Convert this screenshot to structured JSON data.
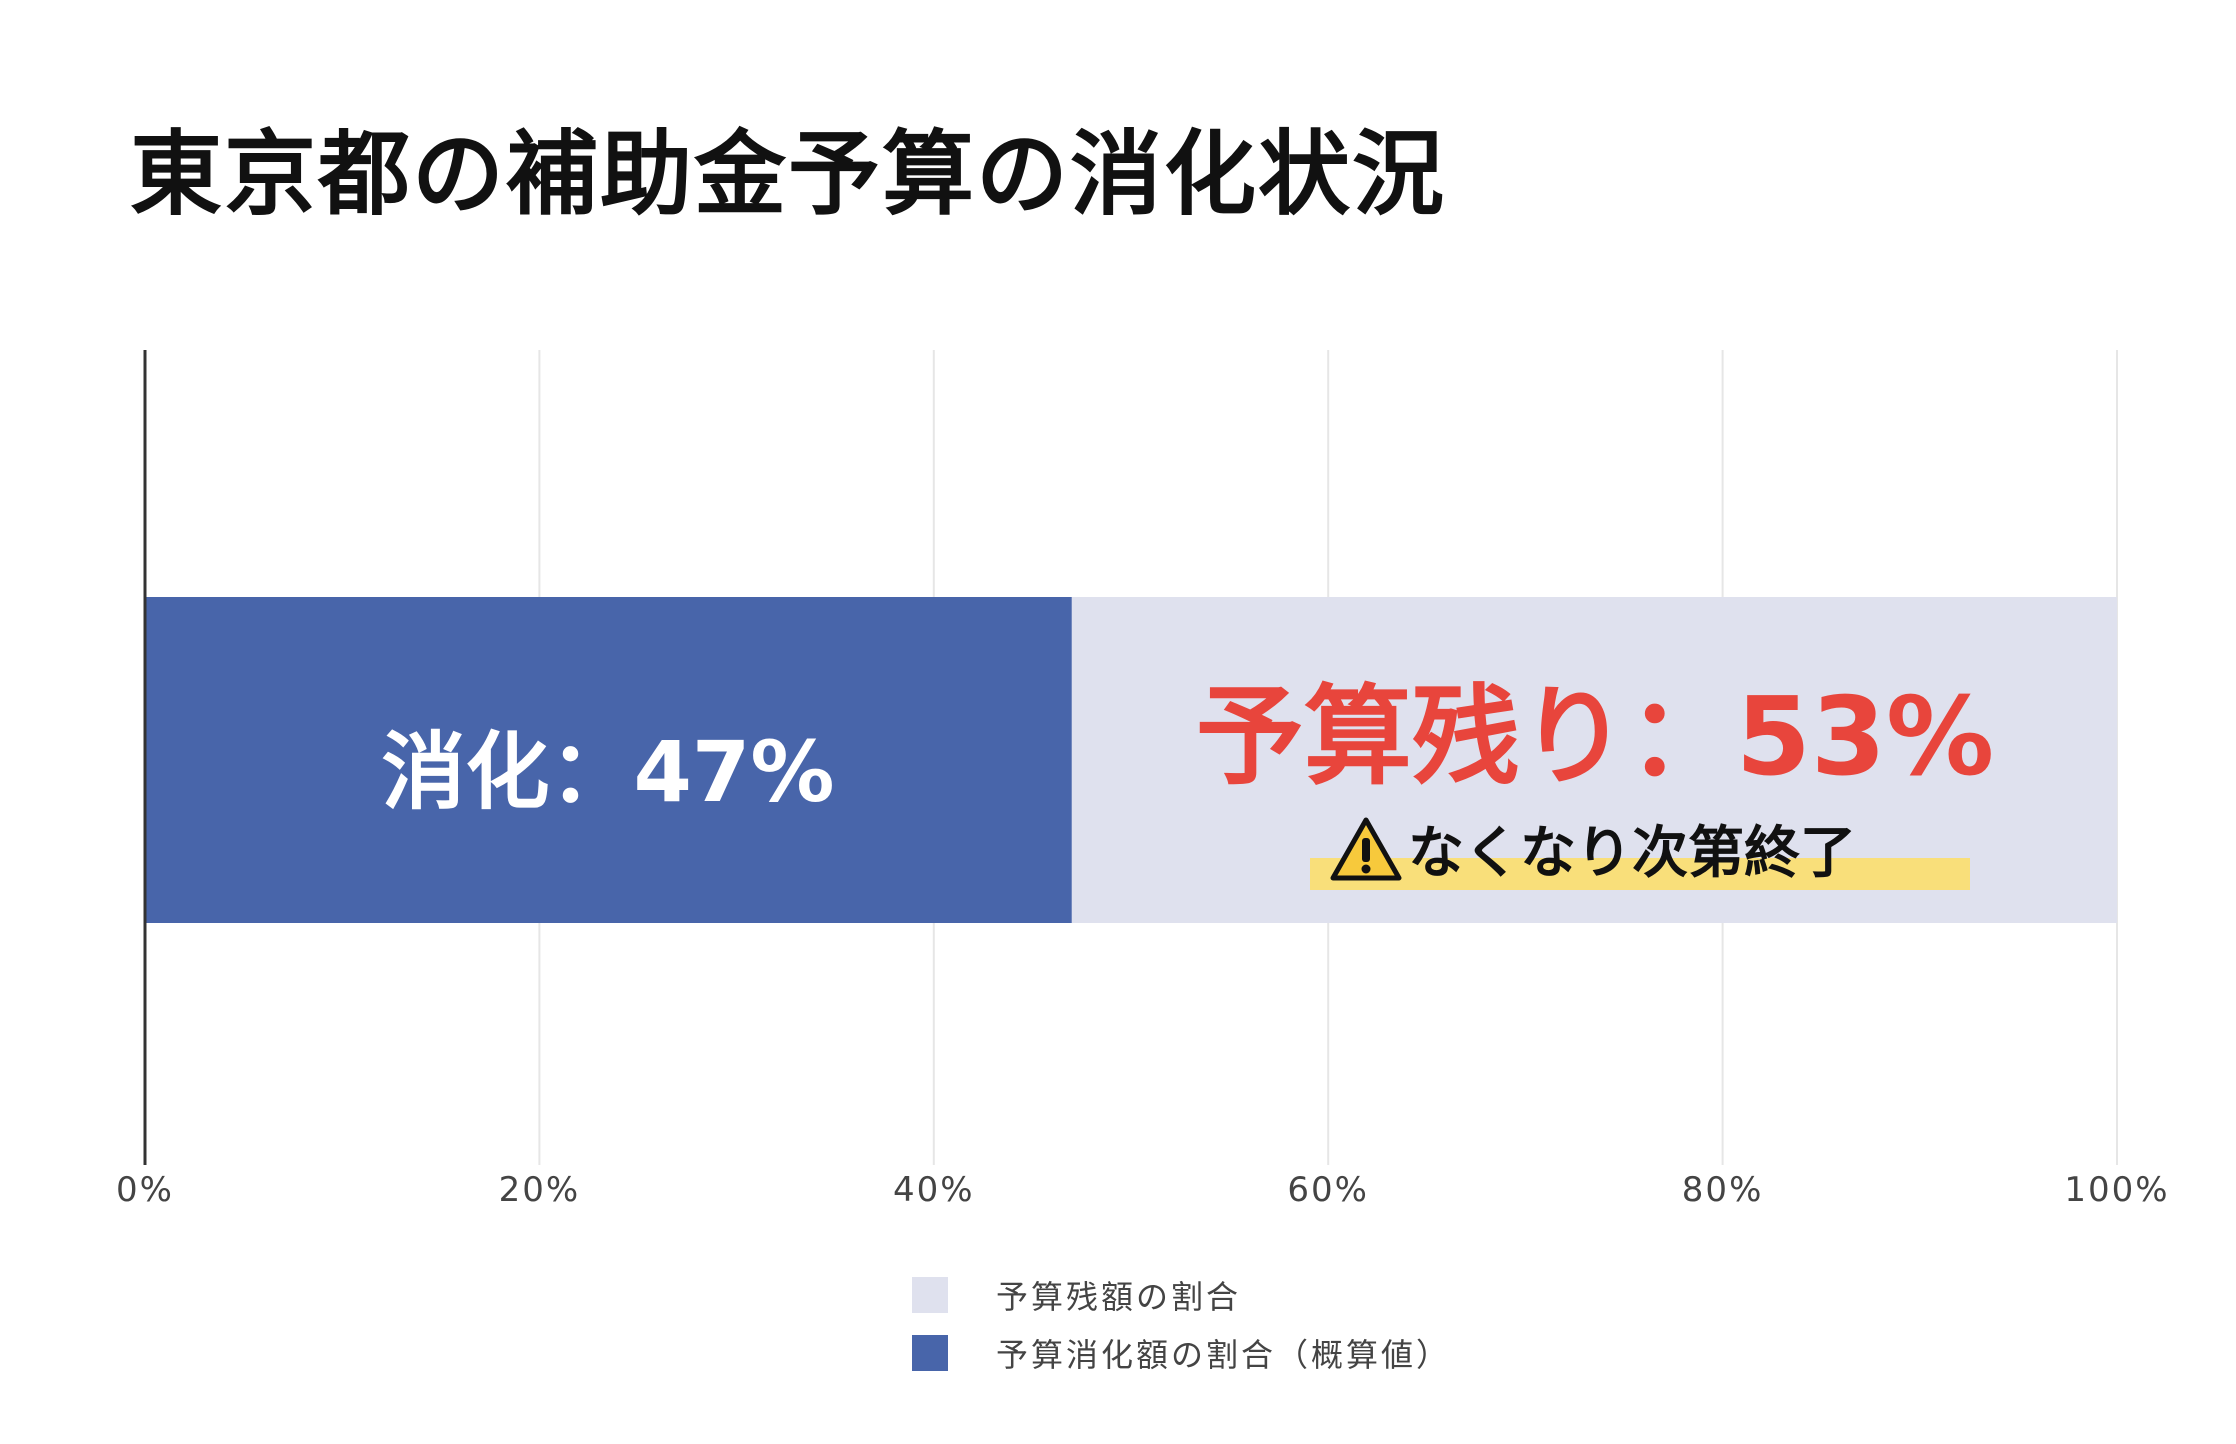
{
  "chart_data": {
    "type": "bar",
    "orientation": "horizontal",
    "stacked": true,
    "title": "東京都の補助金予算の消化状況",
    "categories": [
      ""
    ],
    "series": [
      {
        "name": "予算消化額の割合（概算値）",
        "values": [
          47
        ],
        "color": "#4865aa"
      },
      {
        "name": "予算残額の割合",
        "values": [
          53
        ],
        "color": "#dfe1ee"
      }
    ],
    "xlim": [
      0,
      100
    ],
    "x_ticks": [
      "0%",
      "20%",
      "40%",
      "60%",
      "80%",
      "100%"
    ],
    "grid": true,
    "legend": "bottom-center",
    "annotations": {
      "consumed": "消化：47%",
      "remaining": "予算残り：53%",
      "note": "なくなり次第終了"
    }
  },
  "icons": {
    "note_icon": "warning-icon"
  }
}
